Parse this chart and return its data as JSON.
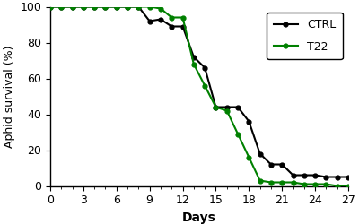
{
  "ctrl_x": [
    0,
    1,
    2,
    3,
    4,
    5,
    6,
    7,
    8,
    9,
    10,
    11,
    12,
    13,
    14,
    15,
    16,
    17,
    18,
    19,
    20,
    21,
    22,
    23,
    24,
    25,
    26,
    27
  ],
  "ctrl_y": [
    100,
    100,
    100,
    100,
    100,
    100,
    100,
    100,
    100,
    92,
    93,
    89,
    89,
    72,
    66,
    44,
    44,
    44,
    36,
    18,
    12,
    12,
    6,
    6,
    6,
    5,
    5,
    5
  ],
  "t22_x": [
    0,
    1,
    2,
    3,
    4,
    5,
    6,
    7,
    8,
    9,
    10,
    11,
    12,
    13,
    14,
    15,
    16,
    17,
    18,
    19,
    20,
    21,
    22,
    23,
    24,
    25,
    26,
    27
  ],
  "t22_y": [
    100,
    100,
    100,
    100,
    100,
    100,
    100,
    100,
    100,
    100,
    99,
    94,
    94,
    68,
    56,
    44,
    42,
    29,
    16,
    3,
    2,
    2,
    2,
    1,
    1,
    1,
    0,
    0
  ],
  "ctrl_color": "#000000",
  "t22_color": "#008000",
  "marker": "o",
  "markersize": 3.5,
  "linewidth": 1.5,
  "xlabel": "Days",
  "ylabel": "Aphid survival (%)",
  "xlim": [
    0,
    27
  ],
  "ylim": [
    0,
    100
  ],
  "xticks_major": [
    0,
    3,
    6,
    9,
    12,
    15,
    18,
    21,
    24,
    27
  ],
  "xticks_minor": [
    1,
    2,
    4,
    5,
    7,
    8,
    10,
    11,
    13,
    14,
    16,
    17,
    19,
    20,
    22,
    23,
    25,
    26
  ],
  "yticks": [
    0,
    20,
    40,
    60,
    80,
    100
  ],
  "legend_ctrl": "CTRL",
  "legend_t22": "T22",
  "bg_color": "#ffffff",
  "xlabel_fontsize": 10,
  "ylabel_fontsize": 9,
  "tick_labelsize": 9,
  "legend_fontsize": 9
}
